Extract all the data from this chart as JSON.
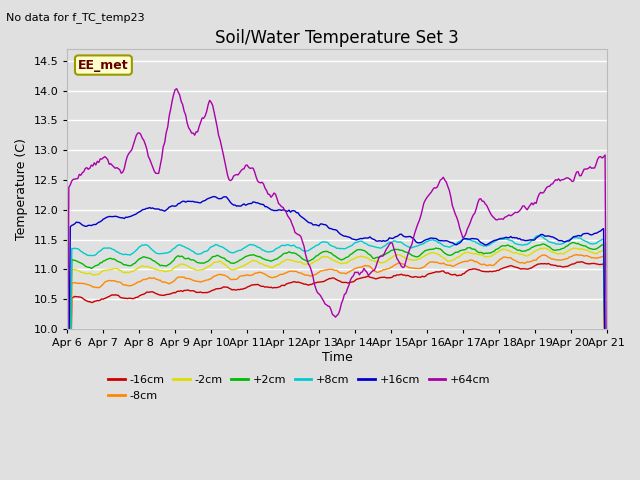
{
  "title": "Soil/Water Temperature Set 3",
  "subtitle": "No data for f_TC_temp23",
  "ylabel": "Temperature (C)",
  "xlabel": "Time",
  "annotation": "EE_met",
  "ylim": [
    10.0,
    14.7
  ],
  "xlim": [
    0,
    360
  ],
  "xtick_labels": [
    "Apr 6",
    "Apr 7",
    "Apr 8",
    "Apr 9",
    "Apr 10",
    "Apr 11",
    "Apr 12",
    "Apr 13",
    "Apr 14",
    "Apr 15",
    "Apr 16",
    "Apr 17",
    "Apr 18",
    "Apr 19",
    "Apr 20",
    "Apr 21"
  ],
  "xtick_positions": [
    0,
    24,
    48,
    72,
    96,
    120,
    144,
    168,
    192,
    216,
    240,
    264,
    288,
    312,
    336,
    360
  ],
  "yticks": [
    10.0,
    10.5,
    11.0,
    11.5,
    12.0,
    12.5,
    13.0,
    13.5,
    14.0,
    14.5
  ],
  "series": [
    {
      "label": "-16cm",
      "color": "#cc0000"
    },
    {
      "label": "-8cm",
      "color": "#ff8800"
    },
    {
      "label": "-2cm",
      "color": "#dddd00"
    },
    {
      "label": "+2cm",
      "color": "#00bb00"
    },
    {
      "label": "+8cm",
      "color": "#00cccc"
    },
    {
      "label": "+16cm",
      "color": "#0000cc"
    },
    {
      "label": "+64cm",
      "color": "#aa00aa"
    }
  ],
  "bg_color": "#e0e0e0",
  "grid_color": "#ffffff",
  "title_fontsize": 12,
  "label_fontsize": 9,
  "tick_fontsize": 8,
  "annotation_fontsize": 9
}
